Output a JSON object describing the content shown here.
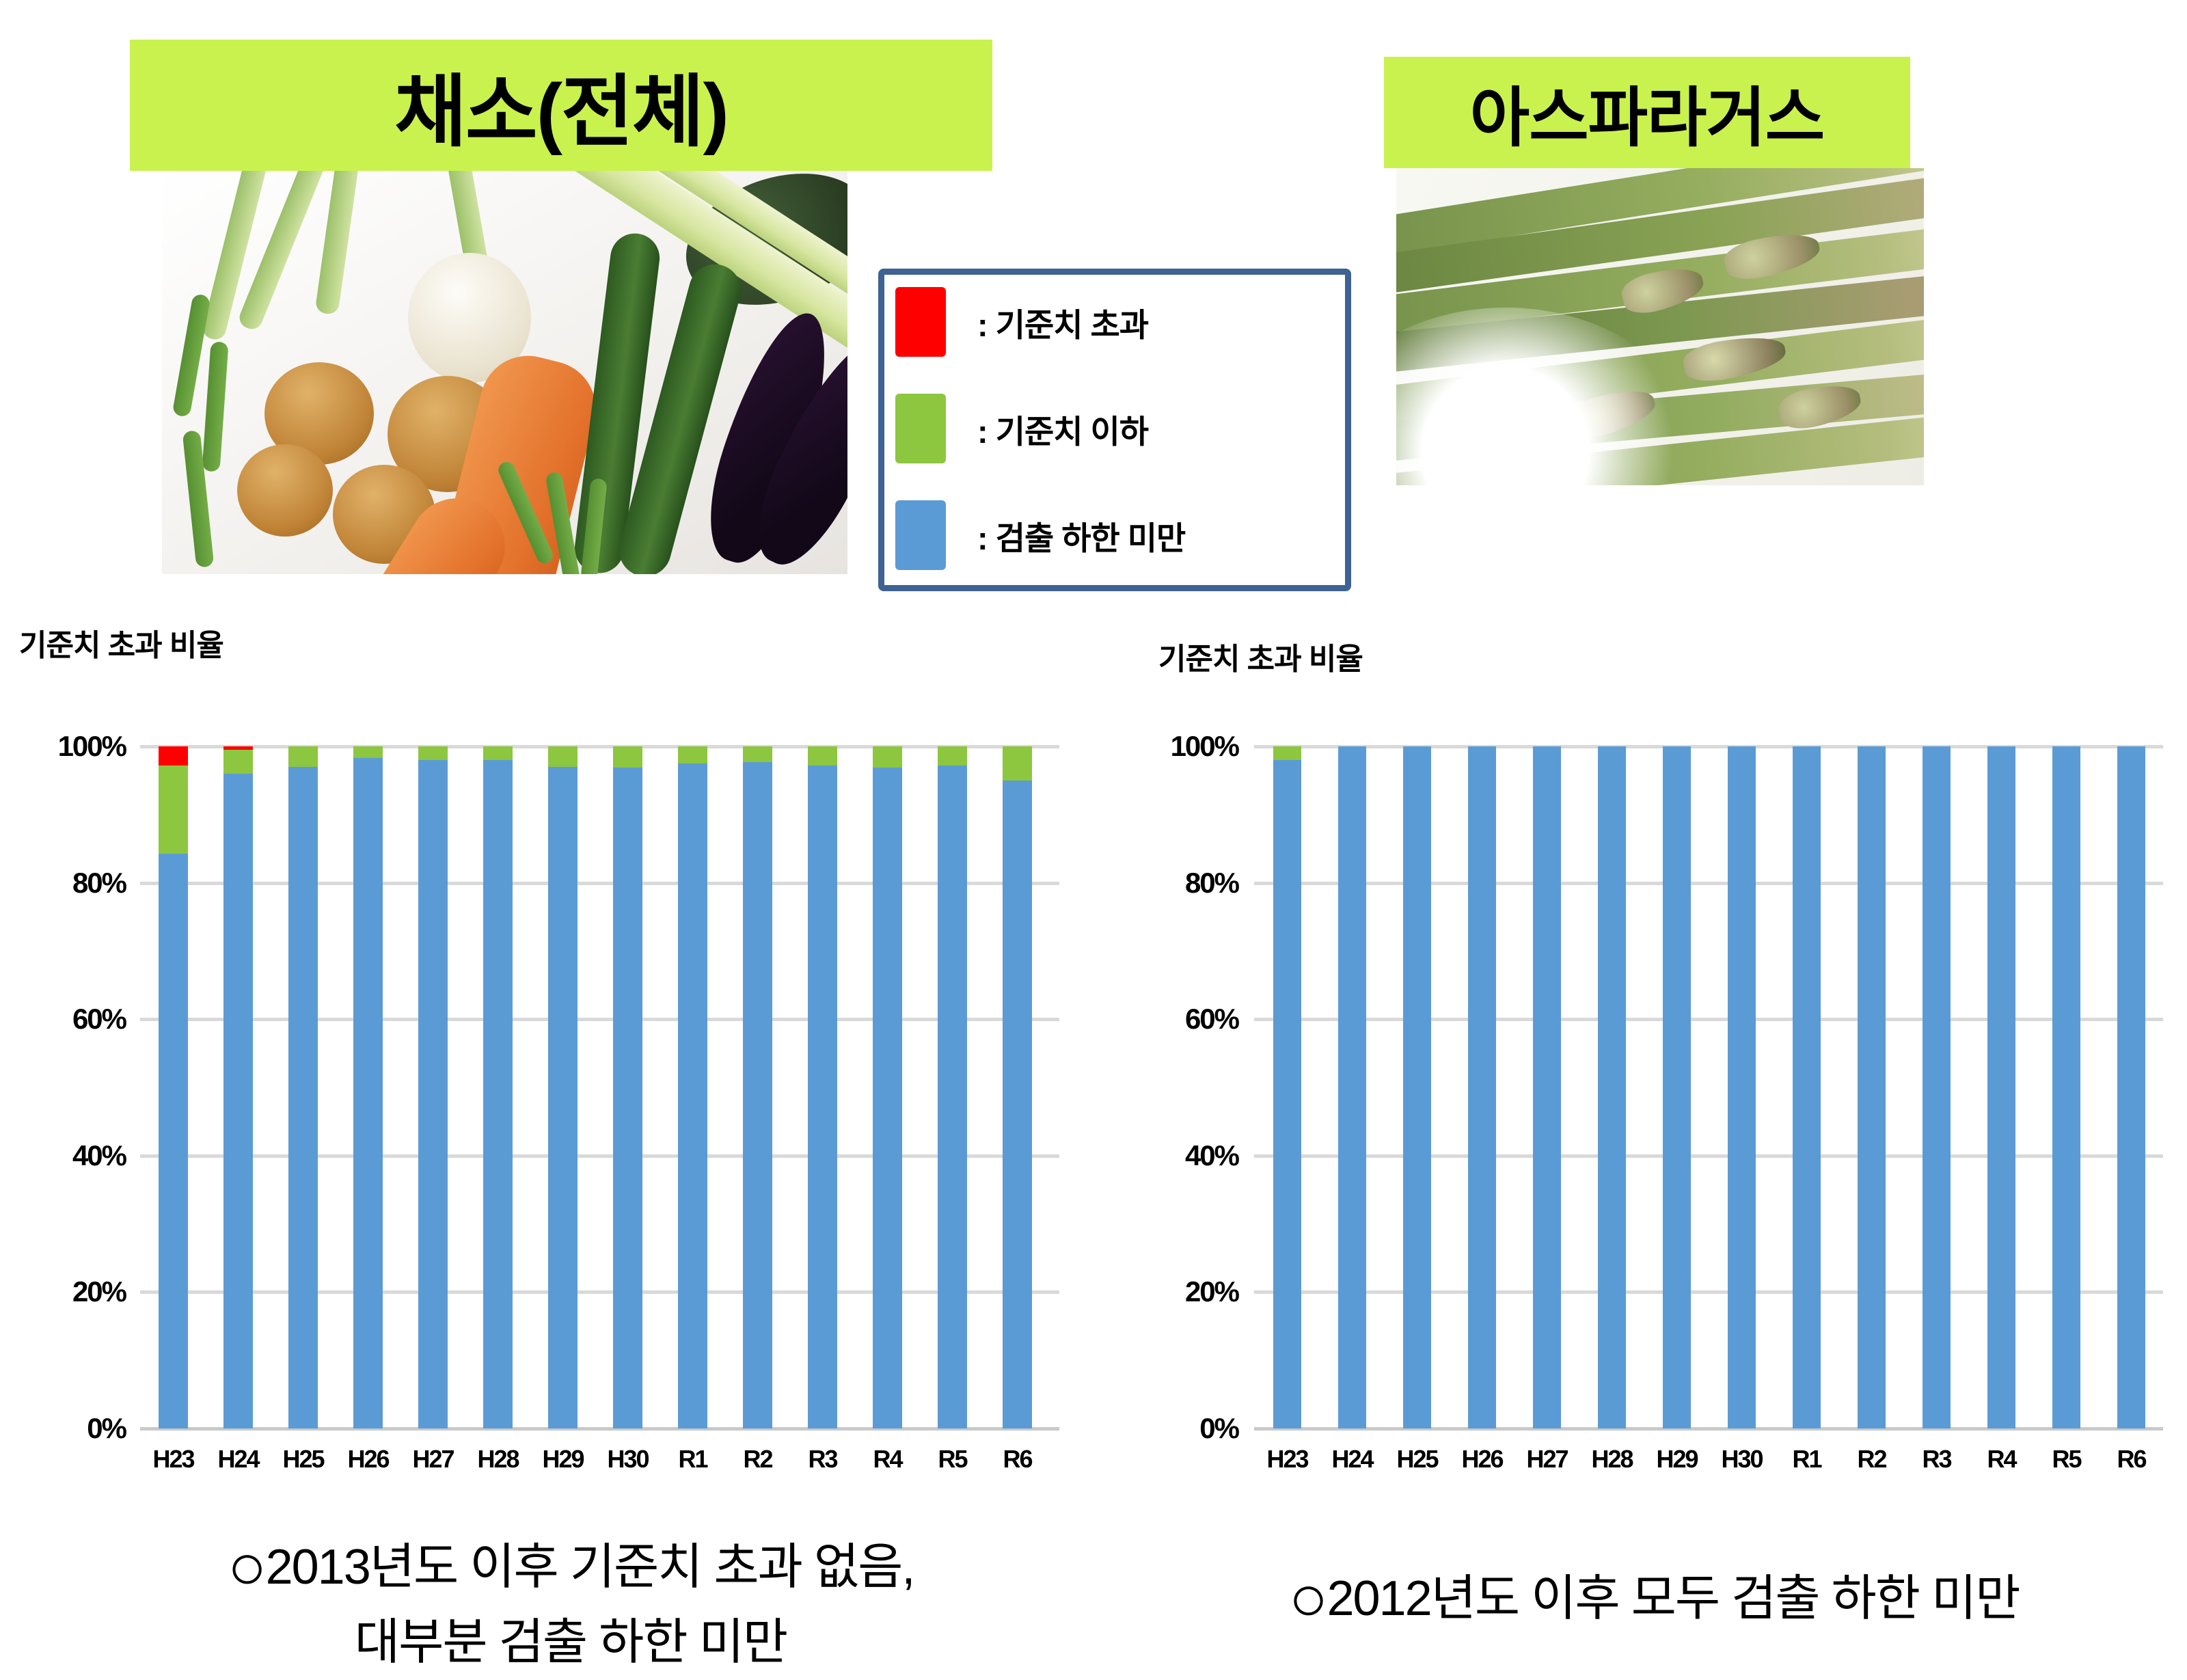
{
  "banners": {
    "left": {
      "label": "채소(전체)",
      "bg": "#C9F24E"
    },
    "right": {
      "label": "아스파라거스",
      "bg": "#C9F24E"
    }
  },
  "photos": {
    "left": "vegetables-still-life-photo",
    "right": "green-asparagus-spears-photo"
  },
  "legend": {
    "border_color": "#3E6294",
    "items": [
      {
        "color": "#FF0000",
        "label": ": 기준치 초과"
      },
      {
        "color": "#8DC63F",
        "label": ": 기준치 이하"
      },
      {
        "color": "#5B9BD5",
        "label": ": 검출 하한 미만"
      }
    ]
  },
  "captions": {
    "left": {
      "bullet": "○",
      "line1": "2013년도 이후 기준치 초과 없음,",
      "line2": "대부분 검출 하한 미만"
    },
    "right": {
      "bullet": "○",
      "text": "2012년도 이후 모두 검출 하한 미만"
    }
  },
  "chart_data": [
    {
      "type": "bar",
      "stacked": true,
      "title": "기준치 초과 비율",
      "subject": "채소(전체)",
      "categories": [
        "H23",
        "H24",
        "H25",
        "H26",
        "H27",
        "H28",
        "H29",
        "H30",
        "R1",
        "R2",
        "R3",
        "R4",
        "R5",
        "R6"
      ],
      "series": [
        {
          "name": "검출 하한 미만",
          "color": "#5B9BD5",
          "values": [
            84.3,
            96,
            97,
            98.3,
            98,
            98,
            97,
            96.9,
            97.5,
            97.7,
            97.2,
            96.9,
            97.2,
            95
          ]
        },
        {
          "name": "기준치 이하",
          "color": "#8DC63F",
          "values": [
            12.9,
            3.5,
            3,
            1.7,
            2,
            2,
            3,
            3.1,
            2.5,
            2.3,
            2.8,
            3.1,
            2.8,
            5
          ]
        },
        {
          "name": "기준치 초과",
          "color": "#FF0000",
          "values": [
            2.8,
            0.5,
            0,
            0,
            0,
            0,
            0,
            0,
            0,
            0,
            0,
            0,
            0,
            0
          ]
        }
      ],
      "ylim": [
        0,
        100
      ],
      "yticks": [
        "0%",
        "20%",
        "40%",
        "60%",
        "80%",
        "100%"
      ],
      "grid": true,
      "gridline_color": "#D9D9D9",
      "legend_position": "shared-top-center"
    },
    {
      "type": "bar",
      "stacked": true,
      "title": "기준치 초과 비율",
      "subject": "아스파라거스",
      "categories": [
        "H23",
        "H24",
        "H25",
        "H26",
        "H27",
        "H28",
        "H29",
        "H30",
        "R1",
        "R2",
        "R3",
        "R4",
        "R5",
        "R6"
      ],
      "series": [
        {
          "name": "검출 하한 미만",
          "color": "#5B9BD5",
          "values": [
            98,
            100,
            100,
            100,
            100,
            100,
            100,
            100,
            100,
            100,
            100,
            100,
            100,
            100
          ]
        },
        {
          "name": "기준치 이하",
          "color": "#8DC63F",
          "values": [
            2,
            0,
            0,
            0,
            0,
            0,
            0,
            0,
            0,
            0,
            0,
            0,
            0,
            0
          ]
        },
        {
          "name": "기준치 초과",
          "color": "#FF0000",
          "values": [
            0,
            0,
            0,
            0,
            0,
            0,
            0,
            0,
            0,
            0,
            0,
            0,
            0,
            0
          ]
        }
      ],
      "ylim": [
        0,
        100
      ],
      "yticks": [
        "0%",
        "20%",
        "40%",
        "60%",
        "80%",
        "100%"
      ],
      "grid": true,
      "gridline_color": "#D9D9D9",
      "legend_position": "shared-top-center"
    }
  ]
}
